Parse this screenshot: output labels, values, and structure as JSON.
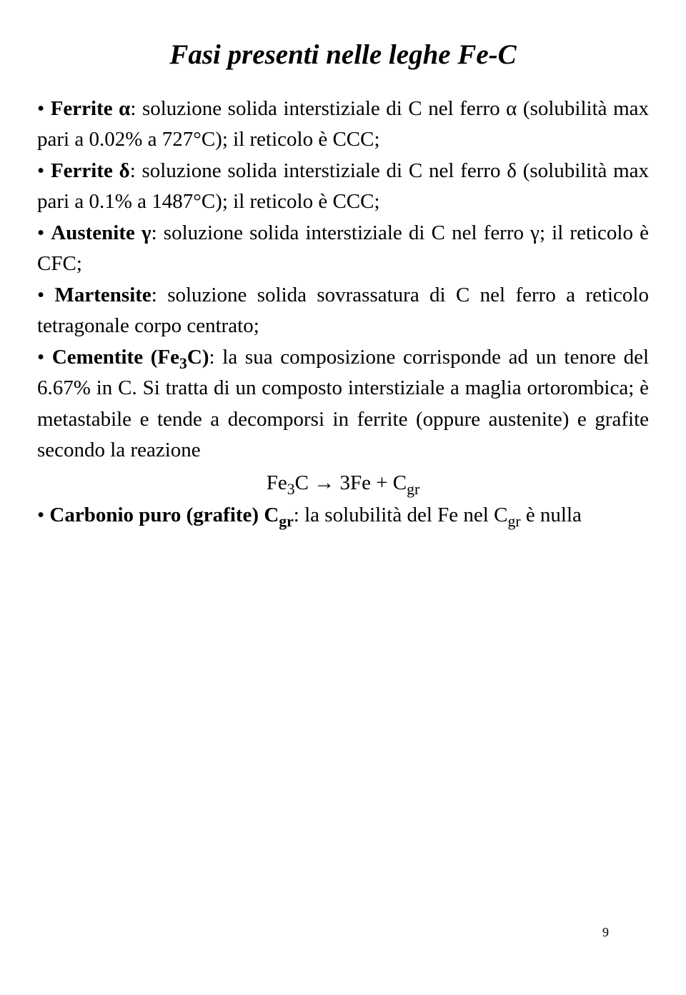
{
  "title": "Fasi presenti nelle leghe Fe-C",
  "ferrite_alpha": {
    "term": "Ferrite α",
    "desc_a": ": soluzione solida interstiziale di C nel ferro α (solubilità max pari a 0.02% a 727°C); il reticolo è CCC;"
  },
  "ferrite_delta": {
    "term": "Ferrite δ",
    "desc_a": ": soluzione solida interstiziale di C nel ferro δ (solubilità max pari a 0.1% a 1487°C); il reticolo è CCC;"
  },
  "austenite": {
    "term": "Austenite γ",
    "desc_a": ": soluzione solida interstiziale di C nel ferro γ; il reticolo è CFC;"
  },
  "martensite": {
    "term": "Martensite",
    "desc_a": ": soluzione solida sovrassatura di C nel ferro a reticolo tetragonale corpo centrato;"
  },
  "cementite": {
    "term_a": "Cementite (Fe",
    "term_sub": "3",
    "term_b": "C)",
    "desc_a": ": la sua composizione corrisponde ad un tenore del 6.67% in C. Si tratta di un composto interstiziale a maglia ortorombica; è metastabile e tende a decomporsi in ferrite (oppure austenite) e grafite secondo la reazione"
  },
  "reaction": {
    "lhs_a": "Fe",
    "lhs_sub": "3",
    "lhs_b": "C",
    "arrow": " → ",
    "rhs_a": "3Fe + C",
    "rhs_sub": "gr"
  },
  "carbonio": {
    "term_a": "Carbonio puro (grafite) C",
    "term_sub": "gr",
    "desc_a": ": la solubilità del Fe nel C",
    "desc_sub": "gr",
    "desc_b": " è nulla"
  },
  "page_number": "9"
}
